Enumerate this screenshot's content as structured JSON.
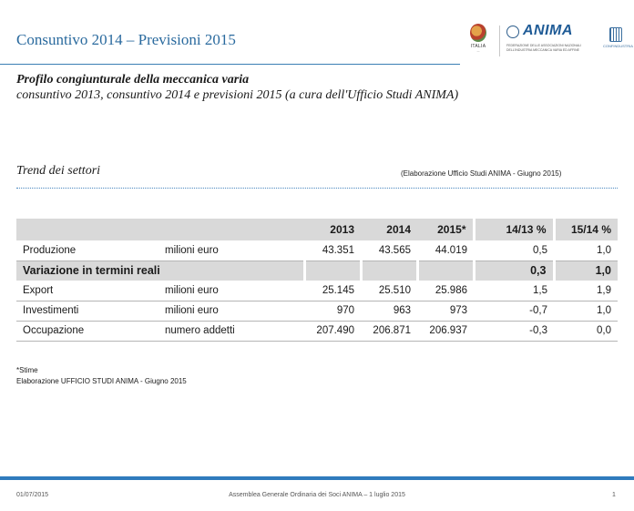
{
  "header": {
    "title": "Consuntivo 2014 – Previsioni 2015"
  },
  "logos": {
    "italia_label": "ITALIA",
    "anima_word": "ANIMA",
    "anima_subtitle": "FEDERAZIONE DELLE ASSOCIAZIONI NAZIONALI DELL'INDUSTRIA MECCANICA VARIA ED AFFINE",
    "confindustria_label": "CONFINDUSTRIA"
  },
  "intro": {
    "title": "Profilo congiunturale della meccanica varia",
    "caption": "consuntivo 2013, consuntivo 2014 e previsioni 2015 (a cura dell'Ufficio Studi ANIMA)"
  },
  "section": {
    "title": "Trend dei settori",
    "source": "(Elaborazione Ufficio Studi ANIMA - Giugno 2015)"
  },
  "table": {
    "headers": [
      "",
      "",
      "2013",
      "2014",
      "2015*",
      "14/13 %",
      "15/14 %"
    ],
    "rows": [
      {
        "label": "Produzione",
        "unit": "milioni euro",
        "y2013": "43.351",
        "y2014": "43.565",
        "y2015": "44.019",
        "v1413": "0,5",
        "v1514": "1,0"
      },
      {
        "label": "Variazione in termini reali",
        "v1413": "0,3",
        "v1514": "1,0"
      },
      {
        "label": "Export",
        "unit": "milioni euro",
        "y2013": "25.145",
        "y2014": "25.510",
        "y2015": "25.986",
        "v1413": "1,5",
        "v1514": "1,9"
      },
      {
        "label": "Investimenti",
        "unit": "milioni euro",
        "y2013": "970",
        "y2014": "963",
        "y2015": "973",
        "v1413": "-0,7",
        "v1514": "1,0"
      },
      {
        "label": "Occupazione",
        "unit": "numero addetti",
        "y2013": "207.490",
        "y2014": "206.871",
        "y2015": "206.937",
        "v1413": "-0,3",
        "v1514": "0,0"
      }
    ]
  },
  "notes": {
    "estimate": "*Stime",
    "source": "Elaborazione UFFICIO STUDI ANIMA - Giugno 2015"
  },
  "footer": {
    "date": "01/07/2015",
    "event": "Assemblea Generale Ordinaria dei Soci ANIMA – 1 luglio 2015",
    "page": "1"
  },
  "colors": {
    "accent": "#2f7bbd",
    "header_text": "#2a6a9e",
    "table_band": "#d9d9d9"
  }
}
